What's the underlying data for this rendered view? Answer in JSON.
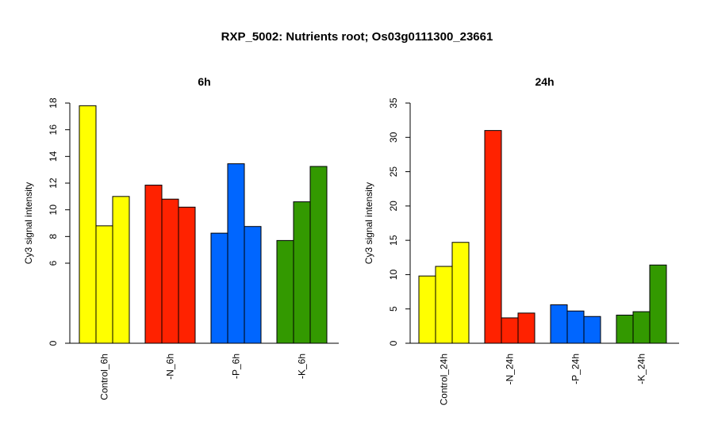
{
  "title": "RXP_5002: Nutrients root; Os03g0111300_23661",
  "colors": {
    "control": "#ffff00",
    "N": "#ff2200",
    "P": "#0066ff",
    "K": "#339900"
  },
  "chart_data": [
    {
      "type": "bar",
      "title": "6h",
      "ylabel": "Cy3 signal intensity",
      "ylim": [
        0,
        18
      ],
      "yticks": [
        0,
        6,
        8,
        10,
        12,
        14,
        16,
        18
      ],
      "grid": false,
      "groups": [
        {
          "label": "Control_6h",
          "color_key": "control",
          "values": [
            17.8,
            8.8,
            11.0
          ]
        },
        {
          "label": "-N_6h",
          "color_key": "N",
          "values": [
            11.85,
            10.8,
            10.2
          ]
        },
        {
          "label": "-P_6h",
          "color_key": "P",
          "values": [
            8.25,
            13.45,
            8.75
          ]
        },
        {
          "label": "-K_6h",
          "color_key": "K",
          "values": [
            7.7,
            10.6,
            13.25
          ]
        }
      ]
    },
    {
      "type": "bar",
      "title": "24h",
      "ylabel": "Cy3 signal intensity",
      "ylim": [
        0,
        35
      ],
      "yticks": [
        0,
        5,
        10,
        15,
        20,
        25,
        30,
        35
      ],
      "grid": false,
      "groups": [
        {
          "label": "Control_24h",
          "color_key": "control",
          "values": [
            9.8,
            11.2,
            14.7
          ]
        },
        {
          "label": "-N_24h",
          "color_key": "N",
          "values": [
            31.0,
            3.7,
            4.4
          ]
        },
        {
          "label": "-P_24h",
          "color_key": "P",
          "values": [
            5.6,
            4.7,
            3.9
          ]
        },
        {
          "label": "-K_24h",
          "color_key": "K",
          "values": [
            4.1,
            4.6,
            11.4
          ]
        }
      ]
    }
  ]
}
